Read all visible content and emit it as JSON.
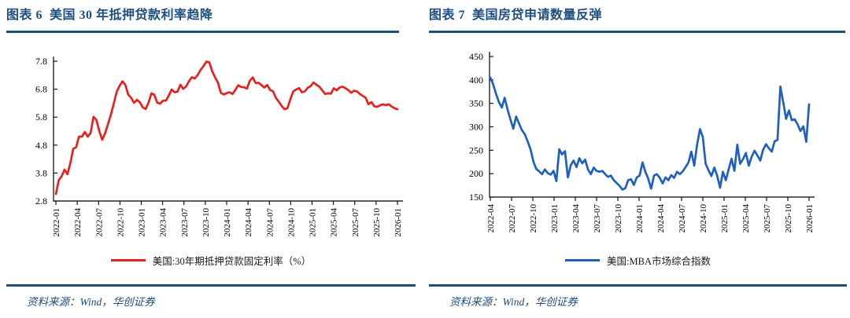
{
  "theme": {
    "accent_navy": "#1c4e80",
    "background": "#ffffff",
    "axis_color": "#000000"
  },
  "panels": [
    {
      "title": "图表 6  美国 30 年抵押贷款利率趋降",
      "source": "资料来源：Wind，华创证券"
    },
    {
      "title": "图表 7  美国房贷申请数量反弹",
      "source": "资料来源：Wind，华创证券"
    }
  ],
  "chart_data": [
    {
      "type": "line",
      "title": "美国 30 年抵押贷款利率趋降",
      "xlabel": "",
      "ylabel": "",
      "ylim": [
        2.8,
        7.8
      ],
      "yticks": [
        2.8,
        3.8,
        4.8,
        5.8,
        6.8,
        7.8
      ],
      "x_tick_labels": [
        "2022-01",
        "2022-04",
        "2022-07",
        "2022-10",
        "2023-01",
        "2023-04",
        "2023-07",
        "2023-10",
        "2024-01",
        "2024-04",
        "2024-07",
        "2024-10",
        "2025-01",
        "2025-04",
        "2025-07",
        "2025-10",
        "2026-01"
      ],
      "x_range": [
        "2022-01",
        "2026-01"
      ],
      "grid": false,
      "legend_position": "bottom",
      "series": [
        {
          "name": "美国:30年期抵押贷款固定利率（%）",
          "color": "#e8211d",
          "values": [
            3.05,
            3.55,
            3.69,
            3.92,
            3.76,
            4.16,
            4.67,
            4.72,
            5.11,
            5.1,
            5.27,
            5.1,
            5.23,
            5.81,
            5.7,
            5.3,
            4.99,
            5.22,
            5.55,
            5.89,
            6.29,
            6.7,
            6.92,
            7.08,
            6.95,
            6.61,
            6.49,
            6.31,
            6.42,
            6.33,
            6.15,
            6.09,
            6.32,
            6.65,
            6.6,
            6.32,
            6.28,
            6.39,
            6.39,
            6.57,
            6.79,
            6.69,
            6.71,
            6.96,
            6.81,
            6.9,
            7.09,
            7.23,
            7.18,
            7.31,
            7.49,
            7.63,
            7.79,
            7.76,
            7.44,
            7.22,
            7.03,
            6.67,
            6.61,
            6.66,
            6.69,
            6.63,
            6.77,
            6.94,
            6.88,
            6.87,
            6.82,
            7.1,
            7.22,
            7.02,
            7.03,
            6.95,
            6.86,
            6.95,
            6.77,
            6.73,
            6.49,
            6.35,
            6.2,
            6.08,
            6.12,
            6.44,
            6.72,
            6.79,
            6.84,
            6.69,
            6.72,
            6.85,
            6.91,
            7.04,
            6.96,
            6.89,
            6.76,
            6.63,
            6.65,
            6.64,
            6.83,
            6.76,
            6.86,
            6.89,
            6.84,
            6.77,
            6.67,
            6.75,
            6.72,
            6.63,
            6.56,
            6.5,
            6.26,
            6.34,
            6.19,
            6.17,
            6.22,
            6.26,
            6.23,
            6.26,
            6.18,
            6.12,
            6.08
          ]
        }
      ]
    },
    {
      "type": "line",
      "title": "美国房贷申请数量反弹",
      "xlabel": "",
      "ylabel": "",
      "ylim": [
        150,
        450
      ],
      "yticks": [
        150,
        200,
        250,
        300,
        350,
        400,
        450
      ],
      "x_tick_labels": [
        "2022-04",
        "2022-07",
        "2022-10",
        "2023-01",
        "2023-04",
        "2023-07",
        "2023-10",
        "2024-01",
        "2024-04",
        "2024-07",
        "2024-10",
        "2025-01",
        "2025-04",
        "2025-07",
        "2025-10",
        "2026-01"
      ],
      "x_range": [
        "2022-04",
        "2026-01"
      ],
      "grid": false,
      "legend_position": "bottom",
      "series": [
        {
          "name": "美国:MBA市场综合指数",
          "color": "#1e5fc1",
          "values": [
            405,
            391,
            370,
            353,
            341,
            362,
            337,
            316,
            296,
            322,
            307,
            293,
            284,
            269,
            252,
            226,
            210,
            205,
            199,
            209,
            201,
            198,
            206,
            184,
            252,
            241,
            248,
            192,
            218,
            228,
            214,
            233,
            222,
            230,
            209,
            199,
            213,
            206,
            204,
            206,
            199,
            193,
            196,
            186,
            180,
            174,
            166,
            169,
            186,
            188,
            176,
            192,
            196,
            224,
            204,
            189,
            168,
            196,
            199,
            191,
            179,
            192,
            186,
            197,
            191,
            204,
            199,
            205,
            214,
            224,
            247,
            217,
            262,
            295,
            278,
            221,
            207,
            195,
            213,
            196,
            170,
            204,
            186,
            209,
            232,
            206,
            262,
            221,
            231,
            244,
            217,
            236,
            249,
            239,
            228,
            251,
            263,
            254,
            247,
            269,
            272,
            386,
            352,
            317,
            335,
            314,
            316,
            305,
            291,
            301,
            268,
            348
          ]
        }
      ]
    }
  ]
}
